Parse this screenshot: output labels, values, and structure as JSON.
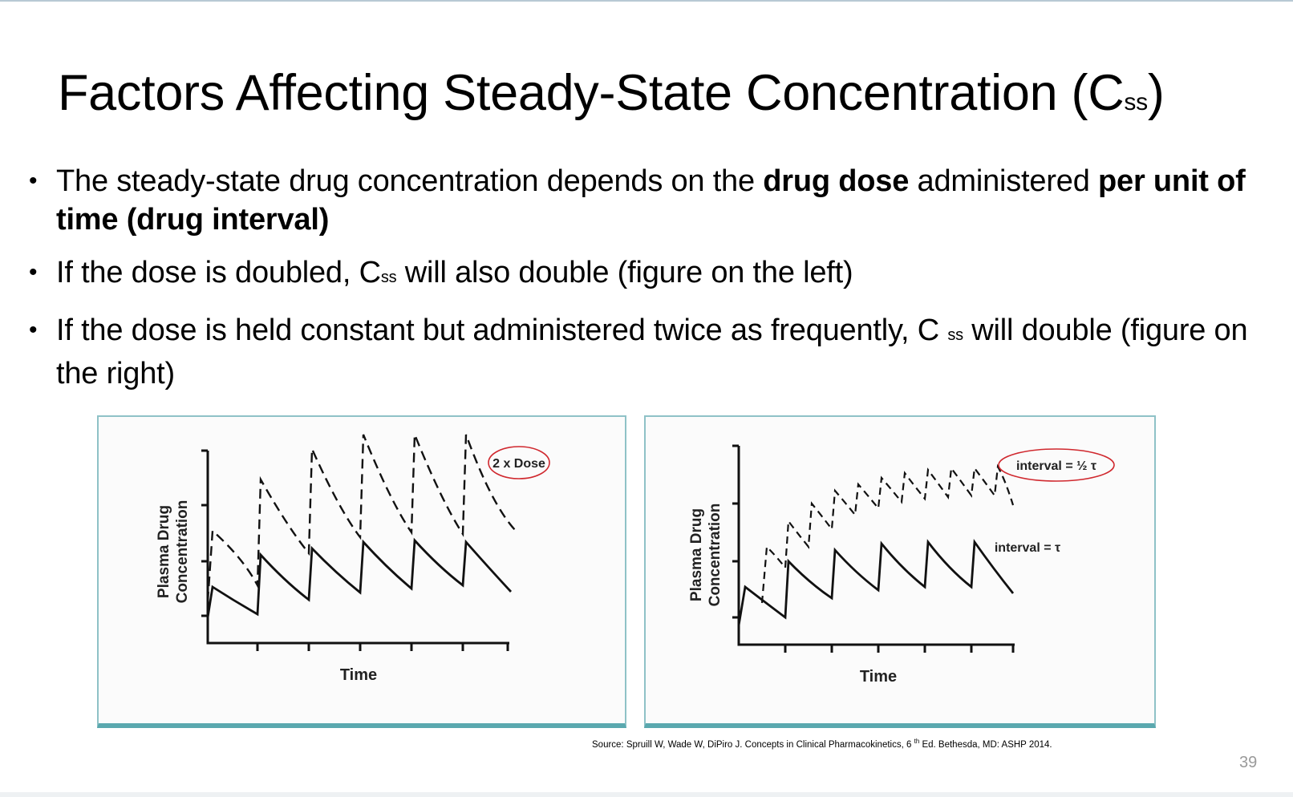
{
  "slide": {
    "title": {
      "main": "Factors Affecting Steady-State Concentration (C",
      "subscript": "ss",
      "close": ")"
    },
    "bullets": [
      {
        "b1_t1": "The steady-state drug concentration depends on the ",
        "b1_bold1": "drug dose",
        "b1_t2": " administered ",
        "b1_bold2": "per unit of time (drug interval)"
      },
      {
        "b2_t1": "If the dose is doubled, C",
        "b2_sub": "ss",
        "b2_t2": " will also double (figure on the left)"
      },
      {
        "b3_t1": "If the dose is held constant but administered twice as frequently, C ",
        "b3_sub": "ss",
        "b3_t2": " will double (figure on the right)"
      }
    ],
    "source": {
      "pre": "Source: Spruill W, Wade W, DiPiro J. Concepts in Clinical Pharmacokinetics, 6 ",
      "sup": "th",
      "post": " Ed. Bethesda, MD: ASHP 2014."
    },
    "page_number": "39"
  },
  "figures": {
    "left": {
      "ylabel_line1": "Plasma Drug",
      "ylabel_line2": "Concentration",
      "xlabel": "Time",
      "annotation": "2 x Dose"
    },
    "right": {
      "ylabel_line1": "Plasma Drug",
      "ylabel_line2": "Concentration",
      "xlabel": "Time",
      "annotation_half": "interval = ½ τ",
      "annotation_full": "interval = τ"
    }
  },
  "chart_data": [
    {
      "type": "line",
      "ylabel": "Plasma Drug Concentration",
      "xlabel": "Time",
      "series": [
        {
          "name": "",
          "style": "solid",
          "dose_multiple": 1,
          "doses_per_interval": 1
        },
        {
          "name": "2 x Dose",
          "style": "dashed",
          "dose_multiple": 2,
          "doses_per_interval": 1
        }
      ],
      "annotation_highlight_color": "#d0282e"
    },
    {
      "type": "line",
      "ylabel": "Plasma Drug Concentration",
      "xlabel": "Time",
      "series": [
        {
          "name": "interval = τ",
          "style": "solid",
          "dose_multiple": 1,
          "doses_per_interval": 1
        },
        {
          "name": "interval = ½ τ",
          "style": "dashed",
          "dose_multiple": 1,
          "doses_per_interval": 2
        }
      ],
      "annotation_highlight_color": "#d0282e"
    }
  ],
  "colors": {
    "frame_border": "#8fc2c7",
    "frame_bottom": "#5aa8ae",
    "highlight_ellipse": "#d0282e",
    "page_number": "#9a9a9a"
  }
}
